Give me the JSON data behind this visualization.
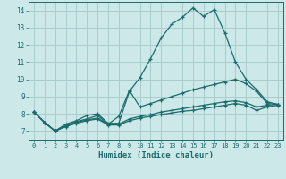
{
  "xlabel": "Humidex (Indice chaleur)",
  "bg_color": "#cce8e8",
  "grid_color": "#aacccc",
  "line_color": "#1a6b6b",
  "xlim": [
    -0.5,
    23.5
  ],
  "ylim": [
    6.5,
    14.5
  ],
  "xticks": [
    0,
    1,
    2,
    3,
    4,
    5,
    6,
    7,
    8,
    9,
    10,
    11,
    12,
    13,
    14,
    15,
    16,
    17,
    18,
    19,
    20,
    21,
    22,
    23
  ],
  "yticks": [
    7,
    8,
    9,
    10,
    11,
    12,
    13,
    14
  ],
  "lines": [
    {
      "x": [
        0,
        1,
        2,
        3,
        4,
        5,
        6,
        7,
        8,
        9,
        10,
        11,
        12,
        13,
        14,
        15,
        16,
        17,
        18,
        19,
        20,
        21,
        22,
        23
      ],
      "y": [
        8.1,
        7.5,
        7.0,
        7.4,
        7.6,
        7.9,
        8.0,
        7.45,
        7.45,
        9.3,
        10.1,
        11.2,
        12.4,
        13.2,
        13.6,
        14.15,
        13.65,
        14.05,
        12.7,
        11.0,
        10.0,
        9.4,
        8.7,
        8.55
      ]
    },
    {
      "x": [
        0,
        1,
        2,
        3,
        4,
        5,
        6,
        7,
        8,
        9,
        10,
        11,
        12,
        13,
        14,
        15,
        16,
        17,
        18,
        19,
        20,
        21,
        22,
        23
      ],
      "y": [
        8.1,
        7.5,
        7.0,
        7.3,
        7.55,
        7.7,
        7.9,
        7.4,
        7.85,
        9.35,
        8.4,
        8.6,
        8.8,
        9.0,
        9.2,
        9.4,
        9.55,
        9.7,
        9.85,
        10.0,
        9.75,
        9.3,
        8.6,
        8.55
      ]
    },
    {
      "x": [
        0,
        1,
        2,
        3,
        4,
        5,
        6,
        7,
        8,
        9,
        10,
        11,
        12,
        13,
        14,
        15,
        16,
        17,
        18,
        19,
        20,
        21,
        22,
        23
      ],
      "y": [
        8.1,
        7.5,
        7.0,
        7.3,
        7.5,
        7.65,
        7.75,
        7.4,
        7.4,
        7.7,
        7.85,
        7.95,
        8.1,
        8.2,
        8.3,
        8.4,
        8.5,
        8.6,
        8.7,
        8.75,
        8.65,
        8.4,
        8.5,
        8.55
      ]
    },
    {
      "x": [
        0,
        1,
        2,
        3,
        4,
        5,
        6,
        7,
        8,
        9,
        10,
        11,
        12,
        13,
        14,
        15,
        16,
        17,
        18,
        19,
        20,
        21,
        22,
        23
      ],
      "y": [
        8.1,
        7.5,
        7.0,
        7.25,
        7.45,
        7.6,
        7.7,
        7.35,
        7.35,
        7.6,
        7.75,
        7.85,
        7.95,
        8.05,
        8.15,
        8.2,
        8.3,
        8.4,
        8.5,
        8.6,
        8.5,
        8.2,
        8.4,
        8.5
      ]
    }
  ]
}
